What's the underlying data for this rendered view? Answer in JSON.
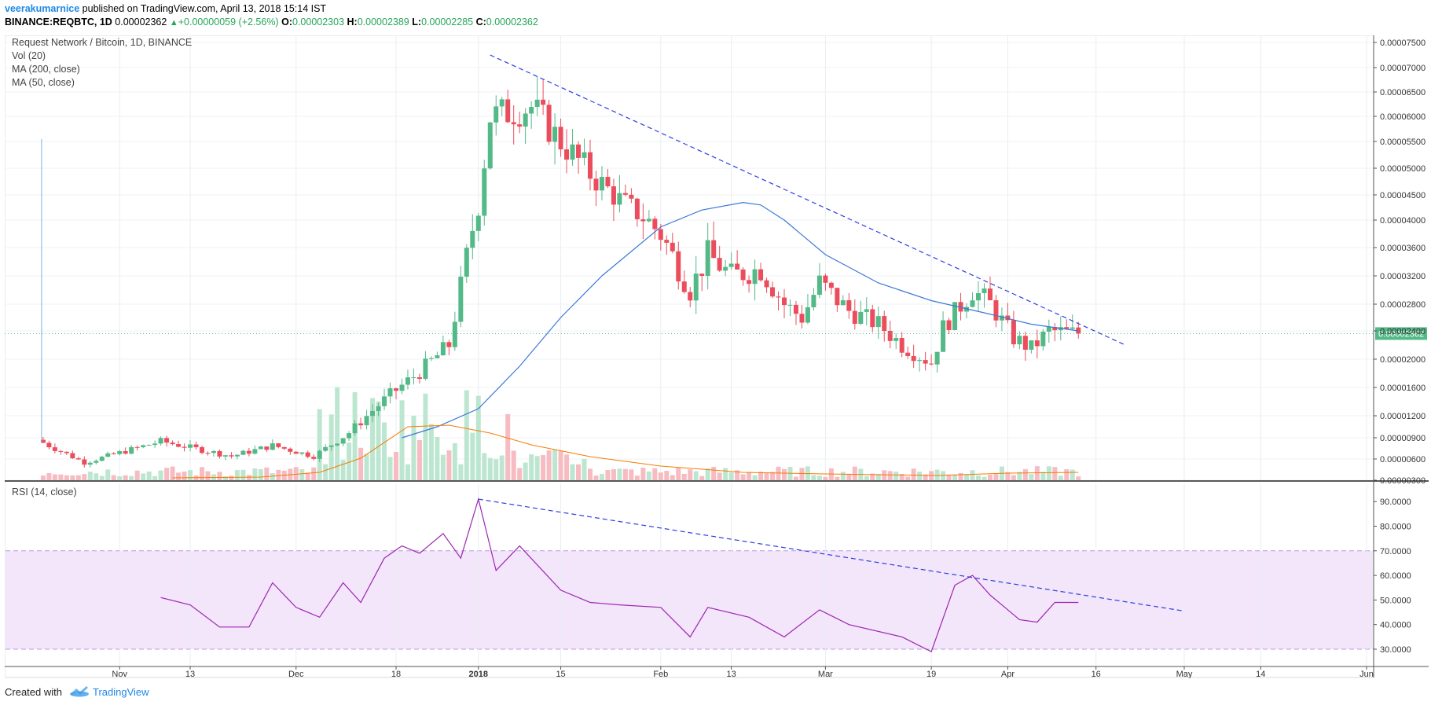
{
  "header": {
    "author": "veerakumarnice",
    "published_text": " published on TradingView.com, April 13, 2018 15:14 IST",
    "symbol_line": "BINANCE:REQBTC, 1D",
    "last": "0.00002362",
    "arrow": "▲",
    "change": "+0.00000059 (+2.56%)",
    "open_label": "O:",
    "open": "0.00002303",
    "high_label": "H:",
    "high": "0.00002389",
    "low_label": "L:",
    "low": "0.00002285",
    "close_label": "C:",
    "close": "0.00002362"
  },
  "legend": {
    "title": "Request Network / Bitcoin, 1D, BINANCE",
    "vol": "Vol (20)",
    "ma200": "MA (200, close)",
    "ma50": "MA (50, close)",
    "rsi": "RSI (14, close)"
  },
  "footer": {
    "created_with": "Created with",
    "brand": "TradingView"
  },
  "colors": {
    "up": "#53b987",
    "down": "#eb4d5c",
    "vol_up": "#bde6d1",
    "vol_down": "#f6bcc2",
    "ma50": "#3c78d8",
    "vol_ma": "#f57c00",
    "rsi": "#9c27b0",
    "rsi_band": "#f3e5fa",
    "trendline": "#2d3fe0",
    "price_tag": "#53b987"
  },
  "chart_data": [
    {
      "type": "candlestick",
      "title": "Request Network / Bitcoin, 1D, BINANCE",
      "x_axis": {
        "start": "2017-10-13",
        "end": "2018-06-01",
        "tick_labels": [
          {
            "date": "2017-11-01",
            "label": "Nov"
          },
          {
            "date": "2017-11-13",
            "label": "13"
          },
          {
            "date": "2017-12-01",
            "label": "Dec"
          },
          {
            "date": "2017-12-18",
            "label": "18"
          },
          {
            "date": "2018-01-01",
            "label": "2018"
          },
          {
            "date": "2018-01-15",
            "label": "15"
          },
          {
            "date": "2018-02-01",
            "label": "Feb"
          },
          {
            "date": "2018-02-13",
            "label": "13"
          },
          {
            "date": "2018-03-01",
            "label": "Mar"
          },
          {
            "date": "2018-03-19",
            "label": "19"
          },
          {
            "date": "2018-04-01",
            "label": "Apr"
          },
          {
            "date": "2018-04-16",
            "label": "16"
          },
          {
            "date": "2018-05-01",
            "label": "May"
          },
          {
            "date": "2018-05-14",
            "label": "14"
          },
          {
            "date": "2018-06-01",
            "label": "Jun"
          }
        ]
      },
      "y_axis": {
        "ticks": [
          "0.00000300",
          "0.00000600",
          "0.00000900",
          "0.00001200",
          "0.00001600",
          "0.00002000",
          "0.00002400",
          "0.00002800",
          "0.00003200",
          "0.00003600",
          "0.00004000",
          "0.00004500",
          "0.00005000",
          "0.00005500",
          "0.00006000",
          "0.00006500",
          "0.00007000",
          "0.00007500"
        ]
      },
      "last_price": "0.00002362",
      "key_closes": [
        {
          "date": "2017-10-19",
          "close": 8.3e-06
        },
        {
          "date": "2017-10-26",
          "close": 5.5e-06
        },
        {
          "date": "2017-11-08",
          "close": 8.5e-06
        },
        {
          "date": "2017-11-20",
          "close": 6.4e-06
        },
        {
          "date": "2017-11-27",
          "close": 7.9e-06
        },
        {
          "date": "2017-12-04",
          "close": 6.4e-06
        },
        {
          "date": "2017-12-10",
          "close": 9.7e-06
        },
        {
          "date": "2017-12-17",
          "close": 1.5e-05
        },
        {
          "date": "2017-12-22",
          "close": 1.82e-05
        },
        {
          "date": "2017-12-27",
          "close": 2.2e-05
        },
        {
          "date": "2018-01-01",
          "close": 4.3e-05
        },
        {
          "date": "2018-01-03",
          "close": 6e-05
        },
        {
          "date": "2018-01-10",
          "close": 6.2e-05
        },
        {
          "date": "2018-01-15",
          "close": 5.5e-05
        },
        {
          "date": "2018-01-20",
          "close": 4.9e-05
        },
        {
          "date": "2018-01-25",
          "close": 4.4e-05
        },
        {
          "date": "2018-02-01",
          "close": 3.8e-05
        },
        {
          "date": "2018-02-06",
          "close": 3e-05
        },
        {
          "date": "2018-02-09",
          "close": 3.5e-05
        },
        {
          "date": "2018-02-13",
          "close": 3.2e-05
        },
        {
          "date": "2018-02-18",
          "close": 3.3e-05
        },
        {
          "date": "2018-02-22",
          "close": 2.8e-05
        },
        {
          "date": "2018-02-25",
          "close": 2.6e-05
        },
        {
          "date": "2018-02-28",
          "close": 3.1e-05
        },
        {
          "date": "2018-03-05",
          "close": 2.7e-05
        },
        {
          "date": "2018-03-10",
          "close": 2.5e-05
        },
        {
          "date": "2018-03-14",
          "close": 2.2e-05
        },
        {
          "date": "2018-03-19",
          "close": 1.95e-05
        },
        {
          "date": "2018-03-21",
          "close": 2.45e-05
        },
        {
          "date": "2018-03-26",
          "close": 3e-05
        },
        {
          "date": "2018-03-29",
          "close": 2.8e-05
        },
        {
          "date": "2018-04-02",
          "close": 2.3e-05
        },
        {
          "date": "2018-04-05",
          "close": 2.15e-05
        },
        {
          "date": "2018-04-08",
          "close": 2.4e-05
        },
        {
          "date": "2018-04-13",
          "close": 2.362e-05
        }
      ],
      "ma50_points": [
        {
          "date": "2017-12-19",
          "value": 9e-06
        },
        {
          "date": "2017-12-25",
          "value": 1.05e-05
        },
        {
          "date": "2018-01-01",
          "value": 1.3e-05
        },
        {
          "date": "2018-01-08",
          "value": 1.9e-05
        },
        {
          "date": "2018-01-15",
          "value": 2.6e-05
        },
        {
          "date": "2018-01-22",
          "value": 3.2e-05
        },
        {
          "date": "2018-02-01",
          "value": 3.9e-05
        },
        {
          "date": "2018-02-08",
          "value": 4.2e-05
        },
        {
          "date": "2018-02-15",
          "value": 4.35e-05
        },
        {
          "date": "2018-02-18",
          "value": 4.3e-05
        },
        {
          "date": "2018-02-22",
          "value": 4e-05
        },
        {
          "date": "2018-03-01",
          "value": 3.5e-05
        },
        {
          "date": "2018-03-10",
          "value": 3.1e-05
        },
        {
          "date": "2018-03-19",
          "value": 2.85e-05
        },
        {
          "date": "2018-03-29",
          "value": 2.65e-05
        },
        {
          "date": "2018-04-05",
          "value": 2.5e-05
        },
        {
          "date": "2018-04-13",
          "value": 2.4e-05
        }
      ],
      "trendline": [
        {
          "date": "2018-01-03",
          "value": 7.25e-05
        },
        {
          "date": "2018-04-21",
          "value": 2.2e-05
        }
      ]
    },
    {
      "type": "line",
      "title": "RSI (14, close)",
      "y_axis": {
        "ticks": [
          "30.0000",
          "40.0000",
          "50.0000",
          "60.0000",
          "70.0000",
          "80.0000",
          "90.0000"
        ],
        "band": [
          30,
          70
        ]
      },
      "rsi_points": [
        {
          "date": "2017-11-08",
          "value": 51
        },
        {
          "date": "2017-11-13",
          "value": 48
        },
        {
          "date": "2017-11-18",
          "value": 39
        },
        {
          "date": "2017-11-23",
          "value": 39
        },
        {
          "date": "2017-11-27",
          "value": 57
        },
        {
          "date": "2017-12-01",
          "value": 47
        },
        {
          "date": "2017-12-05",
          "value": 43
        },
        {
          "date": "2017-12-09",
          "value": 57
        },
        {
          "date": "2017-12-12",
          "value": 49
        },
        {
          "date": "2017-12-16",
          "value": 67
        },
        {
          "date": "2017-12-19",
          "value": 72
        },
        {
          "date": "2017-12-22",
          "value": 69
        },
        {
          "date": "2017-12-26",
          "value": 77
        },
        {
          "date": "2017-12-29",
          "value": 67
        },
        {
          "date": "2018-01-01",
          "value": 91
        },
        {
          "date": "2018-01-04",
          "value": 62
        },
        {
          "date": "2018-01-08",
          "value": 72
        },
        {
          "date": "2018-01-15",
          "value": 54
        },
        {
          "date": "2018-01-20",
          "value": 49
        },
        {
          "date": "2018-01-25",
          "value": 48
        },
        {
          "date": "2018-02-01",
          "value": 47
        },
        {
          "date": "2018-02-06",
          "value": 35
        },
        {
          "date": "2018-02-09",
          "value": 47
        },
        {
          "date": "2018-02-16",
          "value": 43
        },
        {
          "date": "2018-02-22",
          "value": 35
        },
        {
          "date": "2018-02-28",
          "value": 46
        },
        {
          "date": "2018-03-05",
          "value": 40
        },
        {
          "date": "2018-03-14",
          "value": 35
        },
        {
          "date": "2018-03-19",
          "value": 29
        },
        {
          "date": "2018-03-23",
          "value": 56
        },
        {
          "date": "2018-03-26",
          "value": 60
        },
        {
          "date": "2018-03-29",
          "value": 52
        },
        {
          "date": "2018-04-03",
          "value": 42
        },
        {
          "date": "2018-04-06",
          "value": 41
        },
        {
          "date": "2018-04-09",
          "value": 49
        },
        {
          "date": "2018-04-13",
          "value": 49
        }
      ],
      "trendline": [
        {
          "date": "2018-01-01",
          "value": 91
        },
        {
          "date": "2018-05-01",
          "value": 45.5
        }
      ]
    }
  ]
}
